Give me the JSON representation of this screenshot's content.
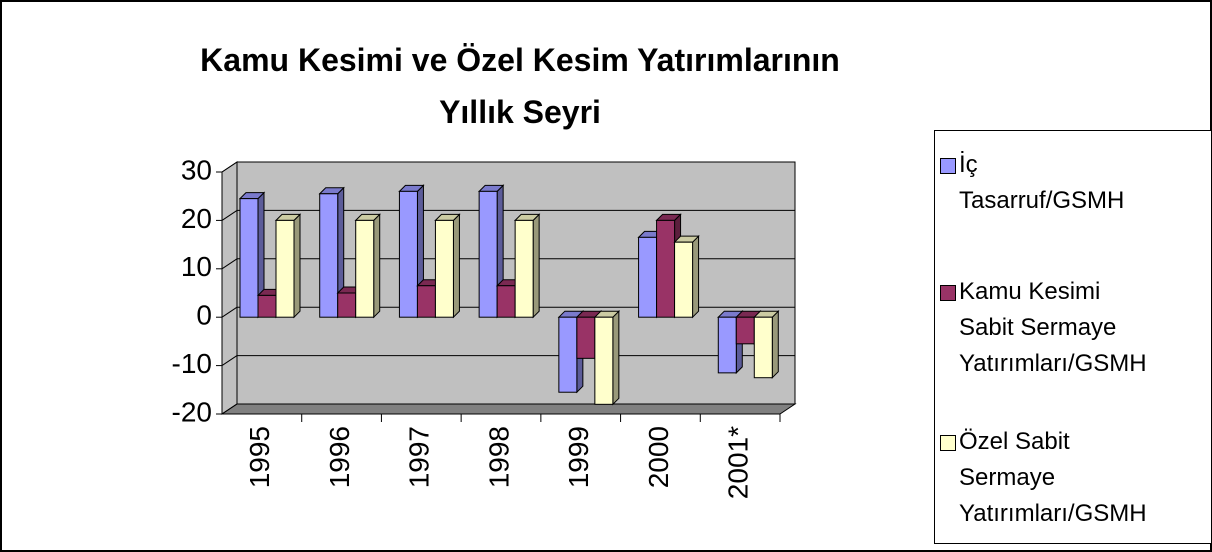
{
  "chart_data": {
    "type": "bar3d",
    "title": "Kamu Kesimi ve Özel Kesim Yatırımlarının Yıllık Seyri",
    "categories": [
      "1995",
      "1996",
      "1997",
      "1998",
      "1999",
      "2000",
      "2001*"
    ],
    "series": [
      {
        "name": "İç Tasarruf/GSMH",
        "color": "#9999ff",
        "values": [
          24.5,
          25.5,
          26,
          26,
          -15.5,
          16.5,
          -11.5
        ]
      },
      {
        "name": "Kamu Kesimi Sabit Sermaye Yatırımları/GSMH",
        "color": "#993366",
        "values": [
          4.5,
          5,
          6.5,
          6.5,
          -8.5,
          20,
          -5.5
        ]
      },
      {
        "name": "Özel Sabit Sermaye Yatırımları/GSMH",
        "color": "#ffffcc",
        "values": [
          20,
          20,
          20,
          20,
          -18,
          15.5,
          -12.5
        ]
      }
    ],
    "ylim": [
      -20,
      30
    ],
    "yticks": [
      -20,
      -10,
      0,
      10,
      20,
      30
    ],
    "grid": true
  }
}
